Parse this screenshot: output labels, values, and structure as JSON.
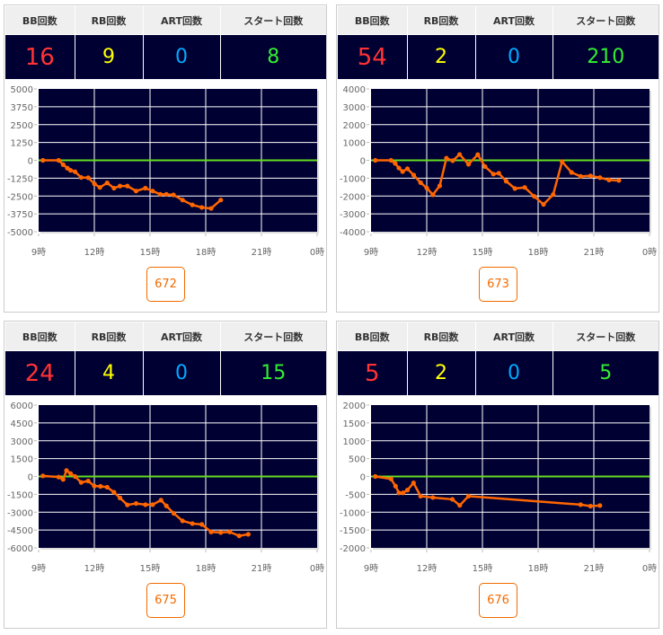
{
  "headers": {
    "bb": "BB回数",
    "rb": "RB回数",
    "art": "ART回数",
    "start": "スタート回数"
  },
  "colors": {
    "bg": "#000033",
    "zero_line": "#66dd22",
    "series": "#ff6600",
    "bb": "#ff3333",
    "rb": "#ffff00",
    "art": "#00aaff",
    "start": "#33ee33"
  },
  "x_ticks": [
    "9時",
    "12時",
    "15時",
    "18時",
    "21時",
    "0時"
  ],
  "panels": [
    {
      "bb": "16",
      "rb": "9",
      "art": "0",
      "start": "8",
      "button": "672"
    },
    {
      "bb": "54",
      "rb": "2",
      "art": "0",
      "start": "210",
      "button": "673"
    },
    {
      "bb": "24",
      "rb": "4",
      "art": "0",
      "start": "15",
      "button": "675"
    },
    {
      "bb": "5",
      "rb": "2",
      "art": "0",
      "start": "5",
      "button": "676"
    }
  ],
  "chart_data": [
    {
      "type": "line",
      "x_unit": "hour",
      "xlim": [
        9,
        24
      ],
      "ylim": [
        -5000,
        5000
      ],
      "y_ticks": [
        "5000",
        "3750",
        "2500",
        "1250",
        "0",
        "-1250",
        "-2500",
        "-3750",
        "-5000"
      ],
      "x": [
        9.23,
        10.08,
        10.32,
        10.55,
        10.72,
        10.96,
        11.29,
        11.67,
        12.01,
        12.3,
        12.69,
        13.06,
        13.38,
        13.78,
        14.25,
        14.75,
        15.14,
        15.55,
        15.88,
        16.26,
        16.75,
        17.28,
        17.79,
        18.29,
        18.81
      ],
      "y": [
        0,
        0,
        -300,
        -550,
        -700,
        -800,
        -1200,
        -1220,
        -1650,
        -1900,
        -1580,
        -1950,
        -1800,
        -1800,
        -2150,
        -1950,
        -2150,
        -2380,
        -2380,
        -2420,
        -2780,
        -3120,
        -3300,
        -3370,
        -2780
      ]
    },
    {
      "type": "line",
      "x_unit": "hour",
      "xlim": [
        9,
        24
      ],
      "ylim": [
        -4000,
        4000
      ],
      "y_ticks": [
        "4000",
        "3000",
        "2000",
        "1000",
        "0",
        "-1000",
        "-2000",
        "-3000",
        "-4000"
      ],
      "x": [
        9.23,
        10.08,
        10.3,
        10.5,
        10.7,
        10.96,
        11.3,
        11.67,
        12.0,
        12.33,
        12.7,
        13.06,
        13.4,
        13.77,
        14.25,
        14.75,
        15.14,
        15.59,
        15.88,
        16.28,
        16.75,
        17.28,
        17.79,
        18.29,
        18.81,
        19.29,
        19.8,
        20.29,
        20.82,
        21.33,
        21.82,
        22.35
      ],
      "y": [
        0,
        0,
        -170,
        -430,
        -630,
        -470,
        -830,
        -1250,
        -1550,
        -1930,
        -1430,
        120,
        -20,
        330,
        -220,
        320,
        -350,
        -770,
        -720,
        -1170,
        -1580,
        -1520,
        -2020,
        -2470,
        -1920,
        -70,
        -680,
        -900,
        -870,
        -970,
        -1100,
        -1130
      ]
    },
    {
      "type": "line",
      "x_unit": "hour",
      "xlim": [
        9,
        24
      ],
      "ylim": [
        -6000,
        6000
      ],
      "y_ticks": [
        "6000",
        "4500",
        "3000",
        "1500",
        "0",
        "-1500",
        "-3000",
        "-4500",
        "-6000"
      ],
      "x": [
        9.23,
        10.08,
        10.32,
        10.5,
        10.72,
        10.96,
        11.29,
        11.67,
        12.0,
        12.33,
        12.69,
        13.06,
        13.38,
        13.78,
        14.25,
        14.75,
        15.14,
        15.59,
        15.88,
        16.28,
        16.75,
        17.28,
        17.79,
        18.29,
        18.81,
        19.29,
        19.8,
        20.29
      ],
      "y": [
        50,
        -50,
        -250,
        500,
        250,
        0,
        -500,
        -380,
        -800,
        -830,
        -900,
        -1330,
        -1800,
        -2390,
        -2270,
        -2370,
        -2370,
        -1990,
        -2470,
        -3100,
        -3730,
        -3960,
        -4030,
        -4660,
        -4710,
        -4660,
        -4990,
        -4860
      ]
    },
    {
      "type": "line",
      "x_unit": "hour",
      "xlim": [
        9,
        24
      ],
      "ylim": [
        -2000,
        2000
      ],
      "y_ticks": [
        "2000",
        "1500",
        "1000",
        "500",
        "0",
        "-500",
        "-1000",
        "-1500",
        "-2000"
      ],
      "x": [
        9.23,
        10.08,
        10.32,
        10.5,
        10.72,
        10.96,
        11.29,
        11.67,
        12.33,
        13.38,
        13.78,
        14.25,
        20.29,
        20.82,
        21.33
      ],
      "y": [
        0,
        -70,
        -270,
        -460,
        -460,
        -380,
        -180,
        -550,
        -590,
        -640,
        -810,
        -550,
        -790,
        -830,
        -815
      ]
    }
  ]
}
